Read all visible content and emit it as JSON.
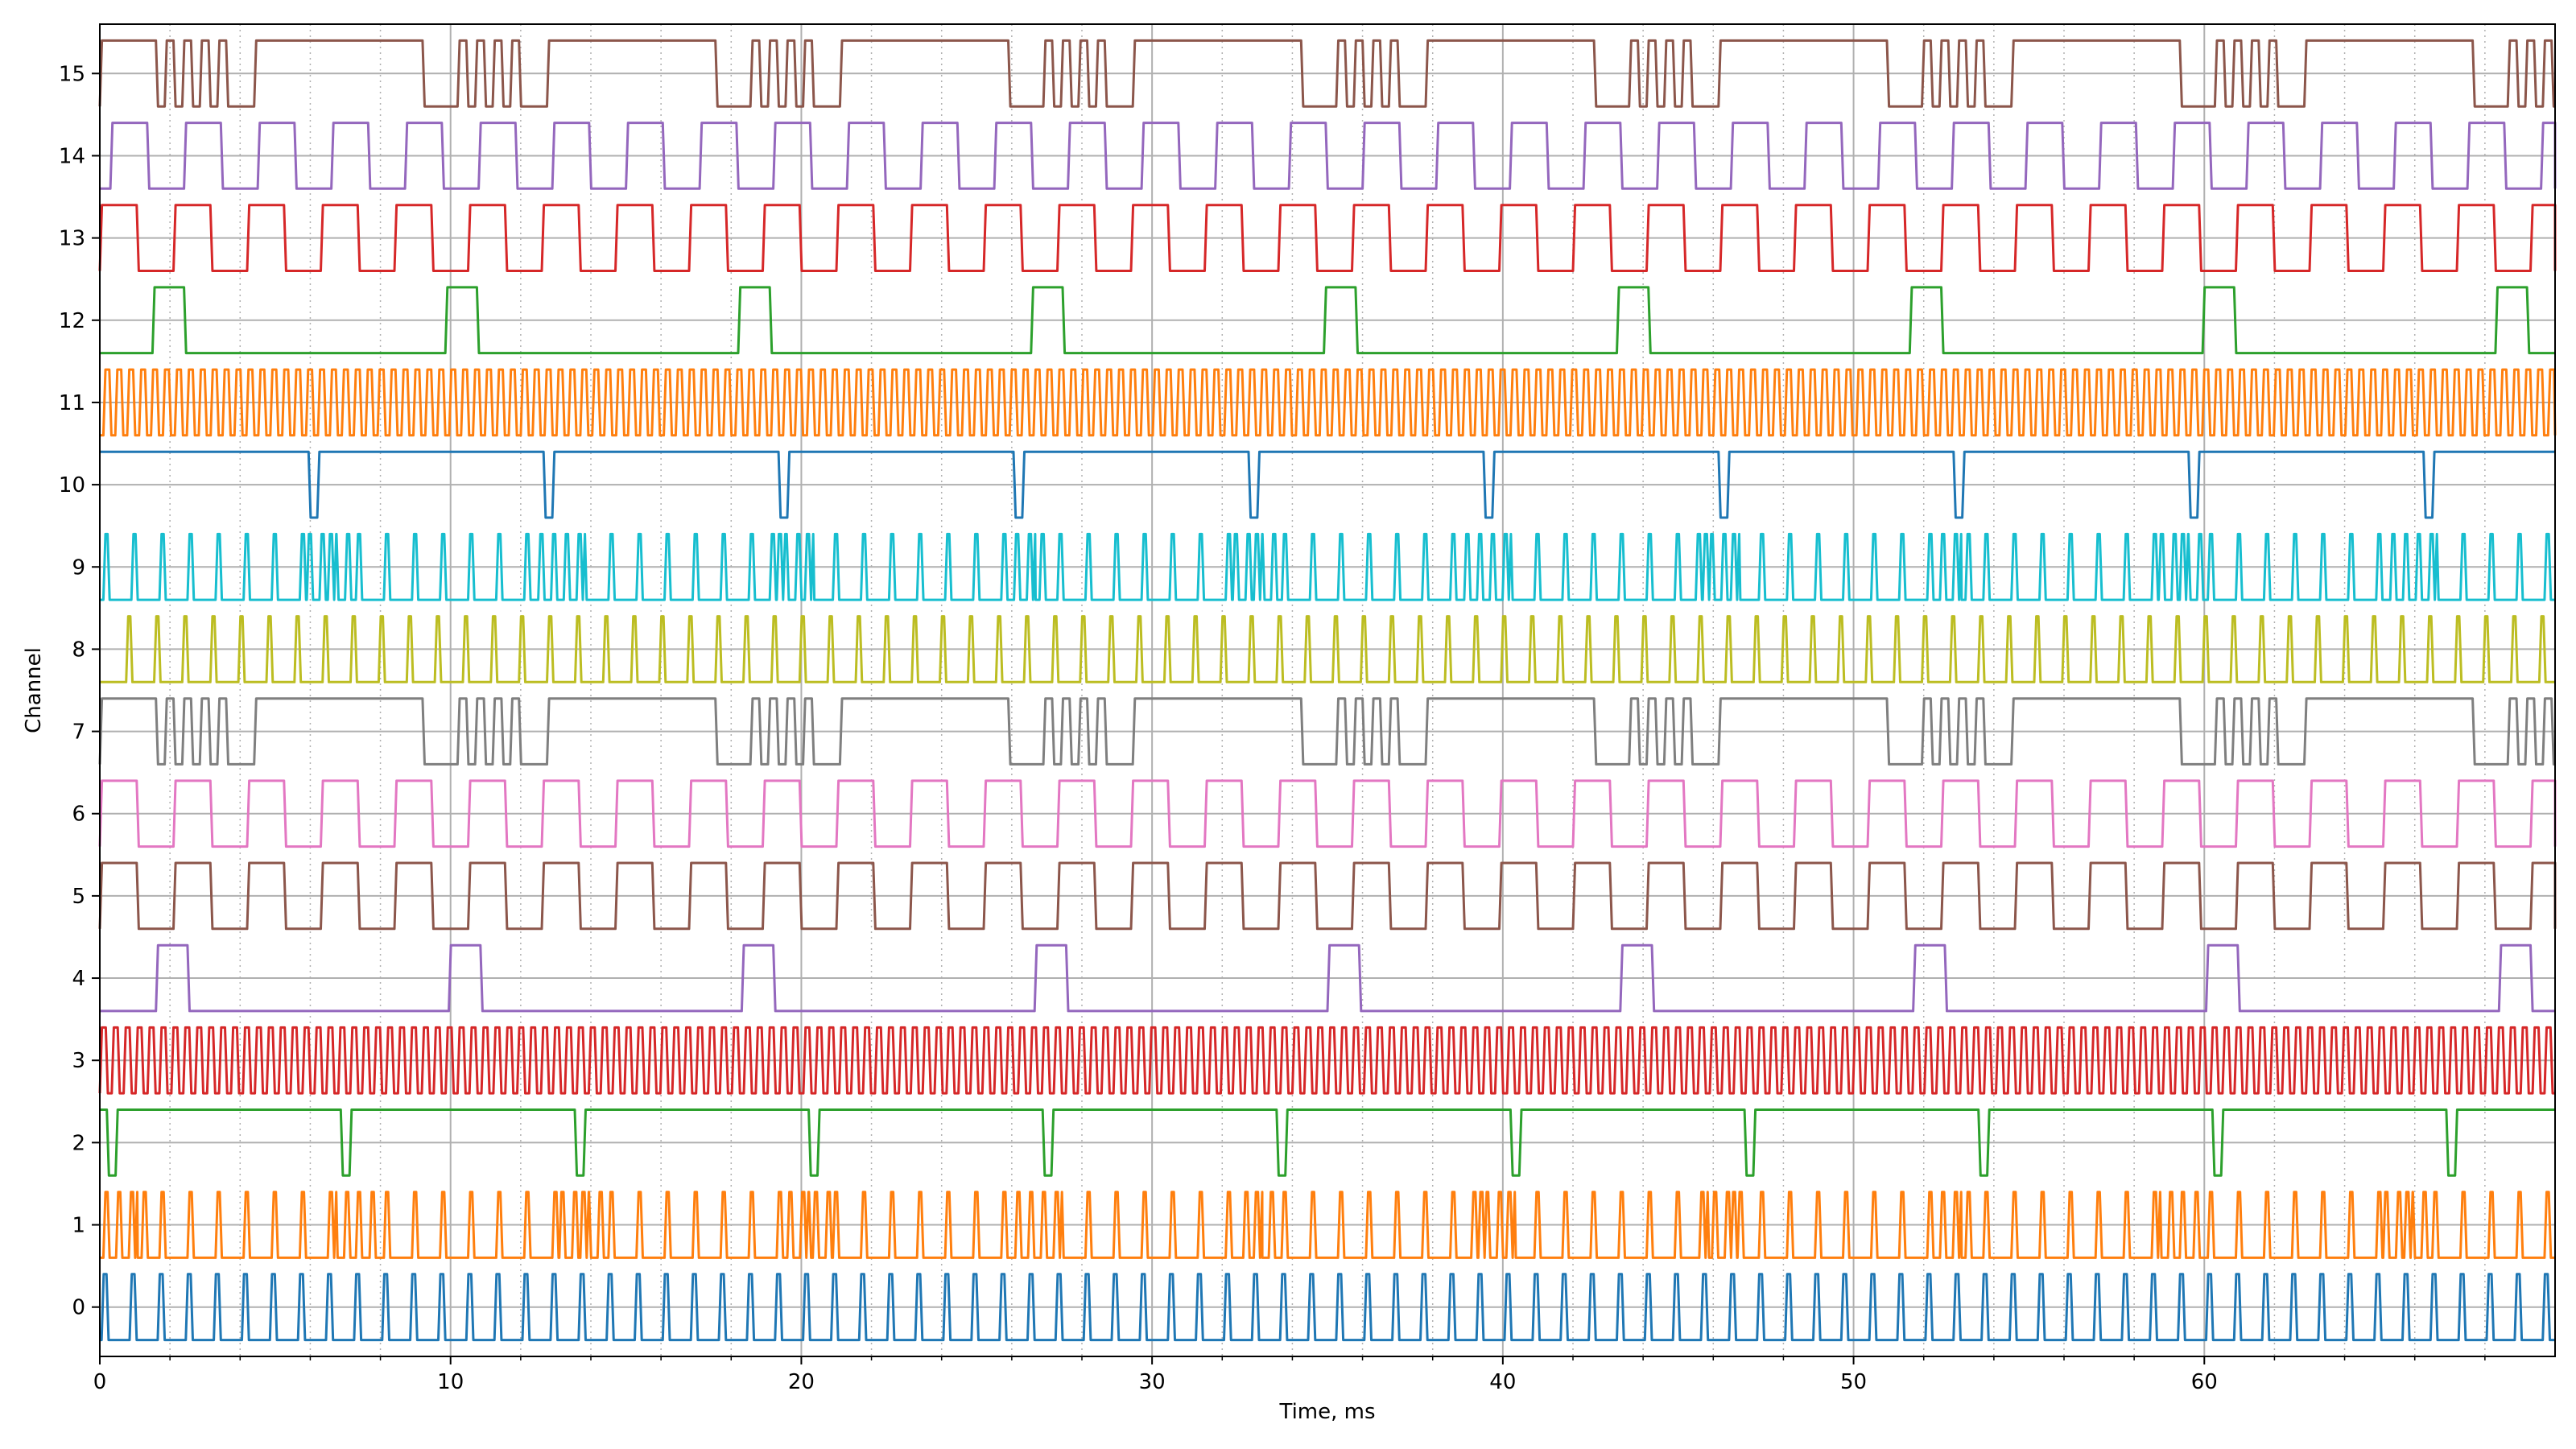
{
  "chart_data": {
    "type": "line",
    "title": "",
    "xlabel": "Time, ms",
    "ylabel": "Channel",
    "xlim": [
      0,
      70
    ],
    "ylim": [
      -0.6,
      15.6
    ],
    "x_ticks": [
      0,
      10,
      20,
      30,
      40,
      50,
      60
    ],
    "x_minor_step": 2,
    "y_ticks": [
      0,
      1,
      2,
      3,
      4,
      5,
      6,
      7,
      8,
      9,
      10,
      11,
      12,
      13,
      14,
      15
    ],
    "grid": "major solid, minor dotted on x",
    "channels": [
      {
        "name": "0",
        "color": "#1f77b4",
        "kind": "pulse",
        "period": 0.8,
        "width": 0.14,
        "offset": 0.05
      },
      {
        "name": "1",
        "color": "#ff7f0e",
        "kind": "pulse_burst",
        "period": 0.8,
        "width": 0.12,
        "offset": 0.1,
        "burst_period": 6.5,
        "burst_offset": 0.1,
        "burst_len": 1.2
      },
      {
        "name": "2",
        "color": "#2ca02c",
        "kind": "dip",
        "period": 6.67,
        "width": 0.25,
        "offset": 0.2
      },
      {
        "name": "3",
        "color": "#d62728",
        "kind": "square",
        "period": 0.34,
        "duty": 0.5,
        "offset": 0
      },
      {
        "name": "4",
        "color": "#9467bd",
        "kind": "high",
        "period": 8.35,
        "width": 0.9,
        "offset": 1.6
      },
      {
        "name": "5",
        "color": "#8c564b",
        "kind": "square",
        "period": 2.1,
        "duty": 0.5,
        "offset": 0
      },
      {
        "name": "6",
        "color": "#e377c2",
        "kind": "square",
        "period": 2.1,
        "duty": 0.5,
        "offset": 0
      },
      {
        "name": "7",
        "color": "#7f7f7f",
        "kind": "burst",
        "period": 8.35,
        "high_len": 4.8,
        "burst_len": 1.9,
        "burst_toggle": 0.25,
        "offset": 1.6
      },
      {
        "name": "8",
        "color": "#bcbd22",
        "kind": "pulse",
        "period": 0.8,
        "width": 0.12,
        "offset": 0.75
      },
      {
        "name": "9",
        "color": "#17becf",
        "kind": "pulse_burst",
        "period": 0.8,
        "width": 0.12,
        "offset": 0.1,
        "burst_period": 6.6,
        "burst_offset": 5.9,
        "burst_len": 1.2
      },
      {
        "name": "10",
        "color": "#1f77b4",
        "kind": "dip",
        "period": 6.7,
        "width": 0.25,
        "offset": 5.95
      },
      {
        "name": "11",
        "color": "#ff7f0e",
        "kind": "square",
        "period": 0.34,
        "duty": 0.5,
        "offset": 0.1
      },
      {
        "name": "12",
        "color": "#2ca02c",
        "kind": "high",
        "period": 8.35,
        "width": 0.9,
        "offset": 1.5
      },
      {
        "name": "13",
        "color": "#d62728",
        "kind": "square",
        "period": 2.1,
        "duty": 0.5,
        "offset": 0
      },
      {
        "name": "14",
        "color": "#9467bd",
        "kind": "square",
        "period": 2.1,
        "duty": 0.5,
        "offset": 0.3
      },
      {
        "name": "15",
        "color": "#8c564b",
        "kind": "burst",
        "period": 8.35,
        "high_len": 4.8,
        "burst_len": 1.9,
        "burst_toggle": 0.25,
        "offset": 1.6
      }
    ]
  }
}
